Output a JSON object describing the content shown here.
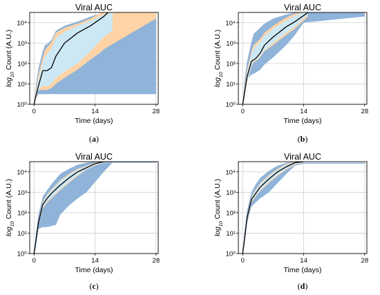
{
  "chart_data": [
    {
      "type": "area",
      "panel": "(a)",
      "title": "Viral AUC",
      "xlabel": "Time (days)",
      "ylabel_prefix": "log",
      "ylabel_sub": "10",
      "ylabel_suffix": "Count (A.U.)",
      "xlim": [
        -1,
        28.5
      ],
      "ylim_log10": [
        0,
        4.5
      ],
      "xticks": [
        0,
        14,
        28
      ],
      "yticks_log10": [
        0,
        1,
        2,
        3,
        4
      ],
      "grid": true,
      "colors": {
        "outer": "#8fb3d9",
        "inner": "#ffd3a6",
        "middle": "#cce8f4",
        "median": "#000000"
      },
      "series": [
        {
          "role": "outer_band",
          "x": [
            0,
            0.4,
            1,
            2,
            2.5,
            3,
            4,
            5,
            7,
            10,
            13,
            16,
            18,
            28
          ],
          "upper": [
            0,
            0.9,
            1.75,
            2.6,
            2.9,
            2.95,
            3.15,
            3.6,
            3.85,
            4.05,
            4.3,
            4.5,
            4.5,
            4.5
          ],
          "lower": [
            0,
            0.3,
            0.5,
            0.5,
            0.5,
            0.5,
            0.5,
            0.5,
            0.5,
            0.5,
            0.5,
            0.5,
            0.5,
            0.5
          ]
        },
        {
          "role": "inner_band",
          "x": [
            0,
            0.4,
            1,
            2,
            2.5,
            3,
            4,
            5,
            7,
            10,
            13,
            15,
            16,
            28
          ],
          "upper": [
            0,
            0.7,
            1.45,
            2.3,
            2.65,
            2.8,
            3.05,
            3.5,
            3.75,
            3.95,
            4.2,
            4.45,
            4.5,
            4.5
          ],
          "lower": [
            0,
            0.3,
            0.7,
            0.7,
            0.7,
            0.7,
            0.8,
            1.0,
            1.3,
            1.7,
            2.2,
            2.5,
            2.7,
            4.2
          ]
        },
        {
          "role": "middle_band",
          "x": [
            0,
            0.4,
            1,
            2,
            2.5,
            3,
            4,
            5,
            7,
            10,
            13,
            16,
            18
          ],
          "upper": [
            0,
            0.55,
            1.2,
            2.05,
            2.35,
            2.45,
            2.75,
            3.25,
            3.55,
            3.85,
            4.1,
            4.4,
            4.5
          ],
          "lower": [
            0,
            0.3,
            0.7,
            0.9,
            0.9,
            0.9,
            1.0,
            1.3,
            1.6,
            2.0,
            2.6,
            3.3,
            3.6
          ]
        },
        {
          "role": "median",
          "x": [
            0,
            0.4,
            1,
            2,
            3,
            4,
            5,
            7,
            10,
            13,
            16,
            17
          ],
          "y": [
            0,
            0.4,
            0.9,
            1.65,
            1.65,
            1.8,
            2.35,
            3.0,
            3.5,
            3.85,
            4.3,
            4.5
          ]
        }
      ]
    },
    {
      "type": "area",
      "panel": "(b)",
      "title": "Viral AUC",
      "xlabel": "Time (days)",
      "ylabel_prefix": "log",
      "ylabel_sub": "10",
      "ylabel_suffix": "Count (A.U.)",
      "xlim": [
        -1,
        28.5
      ],
      "ylim_log10": [
        0,
        4.5
      ],
      "xticks": [
        0,
        14,
        28
      ],
      "yticks_log10": [
        0,
        1,
        2,
        3,
        4
      ],
      "grid": true,
      "colors": {
        "outer": "#8fb3d9",
        "inner": "#ffd3a6",
        "middle": "#cce8f4",
        "median": "#000000"
      },
      "series": [
        {
          "role": "outer_band",
          "x": [
            0,
            0.4,
            1,
            2,
            2.5,
            3,
            4,
            5,
            7,
            10,
            12,
            14,
            28
          ],
          "upper": [
            0,
            1.1,
            2.1,
            3.05,
            3.45,
            3.55,
            3.75,
            3.95,
            4.2,
            4.4,
            4.5,
            4.5,
            4.5
          ],
          "lower": [
            0,
            0.3,
            1.25,
            1.45,
            1.5,
            1.55,
            1.7,
            1.95,
            2.3,
            2.9,
            3.4,
            4.0,
            4.3
          ]
        },
        {
          "role": "inner_band",
          "x": [
            0,
            0.4,
            1,
            2,
            2.5,
            3,
            4,
            5,
            7,
            10,
            12,
            14,
            15
          ],
          "upper": [
            0,
            0.8,
            1.7,
            2.6,
            2.9,
            3.0,
            3.2,
            3.5,
            3.85,
            4.25,
            4.45,
            4.5,
            4.5
          ],
          "lower": [
            0,
            0.4,
            1.05,
            1.85,
            2.05,
            2.1,
            2.3,
            2.6,
            2.9,
            3.4,
            3.7,
            4.1,
            4.3
          ]
        },
        {
          "role": "middle_band",
          "x": [
            0,
            0.4,
            1,
            2,
            2.5,
            3,
            4,
            5,
            7,
            10,
            12,
            14,
            15
          ],
          "upper": [
            0,
            0.7,
            1.55,
            2.45,
            2.75,
            2.85,
            3.05,
            3.35,
            3.7,
            4.1,
            4.35,
            4.5,
            4.5
          ],
          "lower": [
            0,
            0.45,
            1.1,
            1.9,
            2.1,
            2.15,
            2.35,
            2.65,
            3.0,
            3.5,
            3.8,
            4.2,
            4.4
          ]
        },
        {
          "role": "median",
          "x": [
            0,
            0.4,
            1,
            2,
            3,
            4,
            5,
            7,
            10,
            12,
            14,
            15
          ],
          "y": [
            0,
            0.55,
            1.35,
            2.1,
            2.25,
            2.5,
            2.9,
            3.3,
            3.8,
            4.05,
            4.35,
            4.5
          ]
        }
      ]
    },
    {
      "type": "area",
      "panel": "(c)",
      "title": "Viral AUC",
      "xlabel": "Time (days)",
      "ylabel_prefix": "log",
      "ylabel_sub": "10",
      "ylabel_suffix": "Count (A.U.)",
      "xlim": [
        -1,
        28.5
      ],
      "ylim_log10": [
        0,
        4.5
      ],
      "xticks": [
        0,
        14,
        28
      ],
      "yticks_log10": [
        0,
        1,
        2,
        3,
        4
      ],
      "grid": true,
      "colors": {
        "outer": "#8fb3d9",
        "inner": "#ffd3a6",
        "middle": "#cce8f4",
        "median": "#000000"
      },
      "series": [
        {
          "role": "outer_band",
          "x": [
            0,
            0.4,
            1,
            2,
            3,
            4,
            5,
            6,
            8,
            10,
            12,
            14,
            16,
            18,
            28
          ],
          "upper": [
            0,
            0.9,
            1.9,
            2.8,
            3.1,
            3.4,
            3.65,
            3.9,
            4.15,
            4.35,
            4.45,
            4.5,
            4.5,
            4.5,
            4.5
          ],
          "lower": [
            0,
            0.3,
            1.2,
            1.3,
            1.3,
            1.35,
            1.4,
            1.9,
            2.35,
            2.7,
            3.0,
            3.5,
            4.0,
            4.45,
            4.45
          ]
        },
        {
          "role": "inner_band",
          "x": [
            0,
            0.4,
            1,
            2,
            3,
            4,
            6,
            8,
            10,
            12,
            14,
            16,
            18
          ],
          "upper": [
            0,
            0.7,
            1.6,
            2.55,
            2.9,
            3.15,
            3.6,
            3.9,
            4.15,
            4.3,
            4.45,
            4.5,
            4.5
          ],
          "lower": [
            0,
            0.5,
            1.4,
            2.2,
            2.5,
            2.7,
            3.1,
            3.45,
            3.8,
            4.1,
            4.3,
            4.45,
            4.45
          ]
        },
        {
          "role": "middle_band",
          "x": [
            0,
            0.4,
            1,
            2,
            3,
            4,
            6,
            8,
            10,
            12,
            14,
            16,
            18
          ],
          "upper": [
            0,
            0.65,
            1.55,
            2.5,
            2.85,
            3.1,
            3.55,
            3.85,
            4.1,
            4.28,
            4.42,
            4.48,
            4.48
          ],
          "lower": [
            0,
            0.5,
            1.45,
            2.25,
            2.55,
            2.75,
            3.15,
            3.5,
            3.85,
            4.12,
            4.32,
            4.45,
            4.45
          ]
        },
        {
          "role": "median",
          "x": [
            0,
            0.4,
            1,
            2,
            3,
            4,
            6,
            8,
            10,
            12,
            14,
            16,
            18
          ],
          "y": [
            0,
            0.6,
            1.5,
            2.4,
            2.7,
            2.95,
            3.35,
            3.7,
            4.0,
            4.2,
            4.4,
            4.5,
            4.5
          ]
        }
      ]
    },
    {
      "type": "area",
      "panel": "(d)",
      "title": "Viral AUC",
      "xlabel": "Time (days)",
      "ylabel_prefix": "log",
      "ylabel_sub": "10",
      "ylabel_suffix": "Count (A.U.)",
      "xlim": [
        -1,
        28.5
      ],
      "ylim_log10": [
        0,
        4.5
      ],
      "xticks": [
        0,
        14,
        28
      ],
      "yticks_log10": [
        0,
        1,
        2,
        3,
        4
      ],
      "grid": true,
      "colors": {
        "outer": "#8fb3d9",
        "inner": "#ffd3a6",
        "middle": "#cce8f4",
        "median": "#000000"
      },
      "series": [
        {
          "role": "outer_band",
          "x": [
            0,
            0.4,
            1,
            2,
            3,
            4,
            6,
            8,
            10,
            12,
            14,
            28
          ],
          "upper": [
            0,
            1.0,
            2.1,
            3.0,
            3.4,
            3.7,
            4.05,
            4.3,
            4.45,
            4.5,
            4.45,
            4.45
          ],
          "lower": [
            0,
            0.4,
            1.5,
            2.3,
            2.5,
            2.7,
            3.0,
            3.45,
            3.9,
            4.3,
            4.4,
            4.4
          ]
        },
        {
          "role": "inner_band",
          "x": [
            0,
            0.4,
            1,
            2,
            3,
            4,
            6,
            8,
            10,
            12,
            14
          ],
          "upper": [
            0,
            0.8,
            1.85,
            2.8,
            3.15,
            3.45,
            3.85,
            4.15,
            4.4,
            4.5,
            4.5
          ],
          "lower": [
            0,
            0.55,
            1.6,
            2.5,
            2.8,
            3.05,
            3.45,
            3.8,
            4.1,
            4.35,
            4.45
          ]
        },
        {
          "role": "middle_band",
          "x": [
            0,
            0.4,
            1,
            2,
            3,
            4,
            6,
            8,
            10,
            12,
            14
          ],
          "upper": [
            0,
            0.75,
            1.8,
            2.75,
            3.1,
            3.4,
            3.8,
            4.1,
            4.35,
            4.48,
            4.5
          ],
          "lower": [
            0,
            0.6,
            1.65,
            2.55,
            2.85,
            3.1,
            3.5,
            3.85,
            4.15,
            4.38,
            4.46
          ]
        },
        {
          "role": "median",
          "x": [
            0,
            0.4,
            1,
            2,
            3,
            4,
            6,
            8,
            10,
            12,
            14
          ],
          "y": [
            0,
            0.7,
            1.75,
            2.65,
            2.95,
            3.25,
            3.65,
            4.0,
            4.25,
            4.45,
            4.5
          ]
        }
      ]
    }
  ]
}
